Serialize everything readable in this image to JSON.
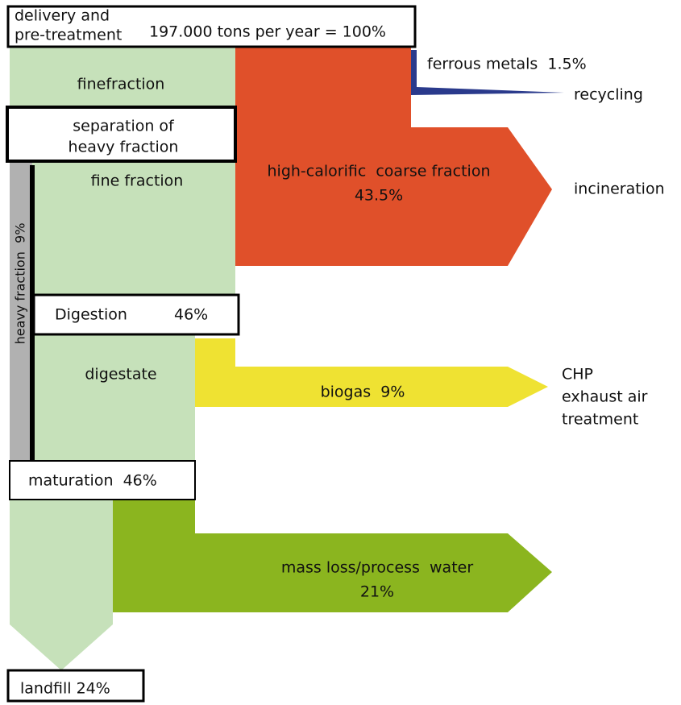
{
  "header": {
    "label_lines": [
      "delivery and",
      "pre-treatment"
    ],
    "total": "197.000 tons per year = 100%"
  },
  "stages": {
    "fine_fraction_top": "finefraction",
    "separation": [
      "separation of",
      "heavy fraction"
    ],
    "fine_fraction": "fine fraction",
    "heavy_fraction": "heavy fraction  9%",
    "digestion": {
      "label": "Digestion",
      "share": "46%"
    },
    "digestate": "digestate",
    "maturation": "maturation  46%",
    "landfill": "landfill 24%"
  },
  "flows": {
    "ferrous": {
      "label": "ferrous metals  1.5%",
      "destination": "recycling"
    },
    "coarse": {
      "label_lines": [
        "high-calorific  coarse fraction",
        "43.5%"
      ],
      "destination": "incineration"
    },
    "biogas": {
      "label": "biogas  9%",
      "destination_lines": [
        "CHP",
        "exhaust air",
        "treatment"
      ]
    },
    "mass_loss": {
      "label_lines": [
        "mass loss/process  water",
        "21%"
      ]
    }
  }
}
